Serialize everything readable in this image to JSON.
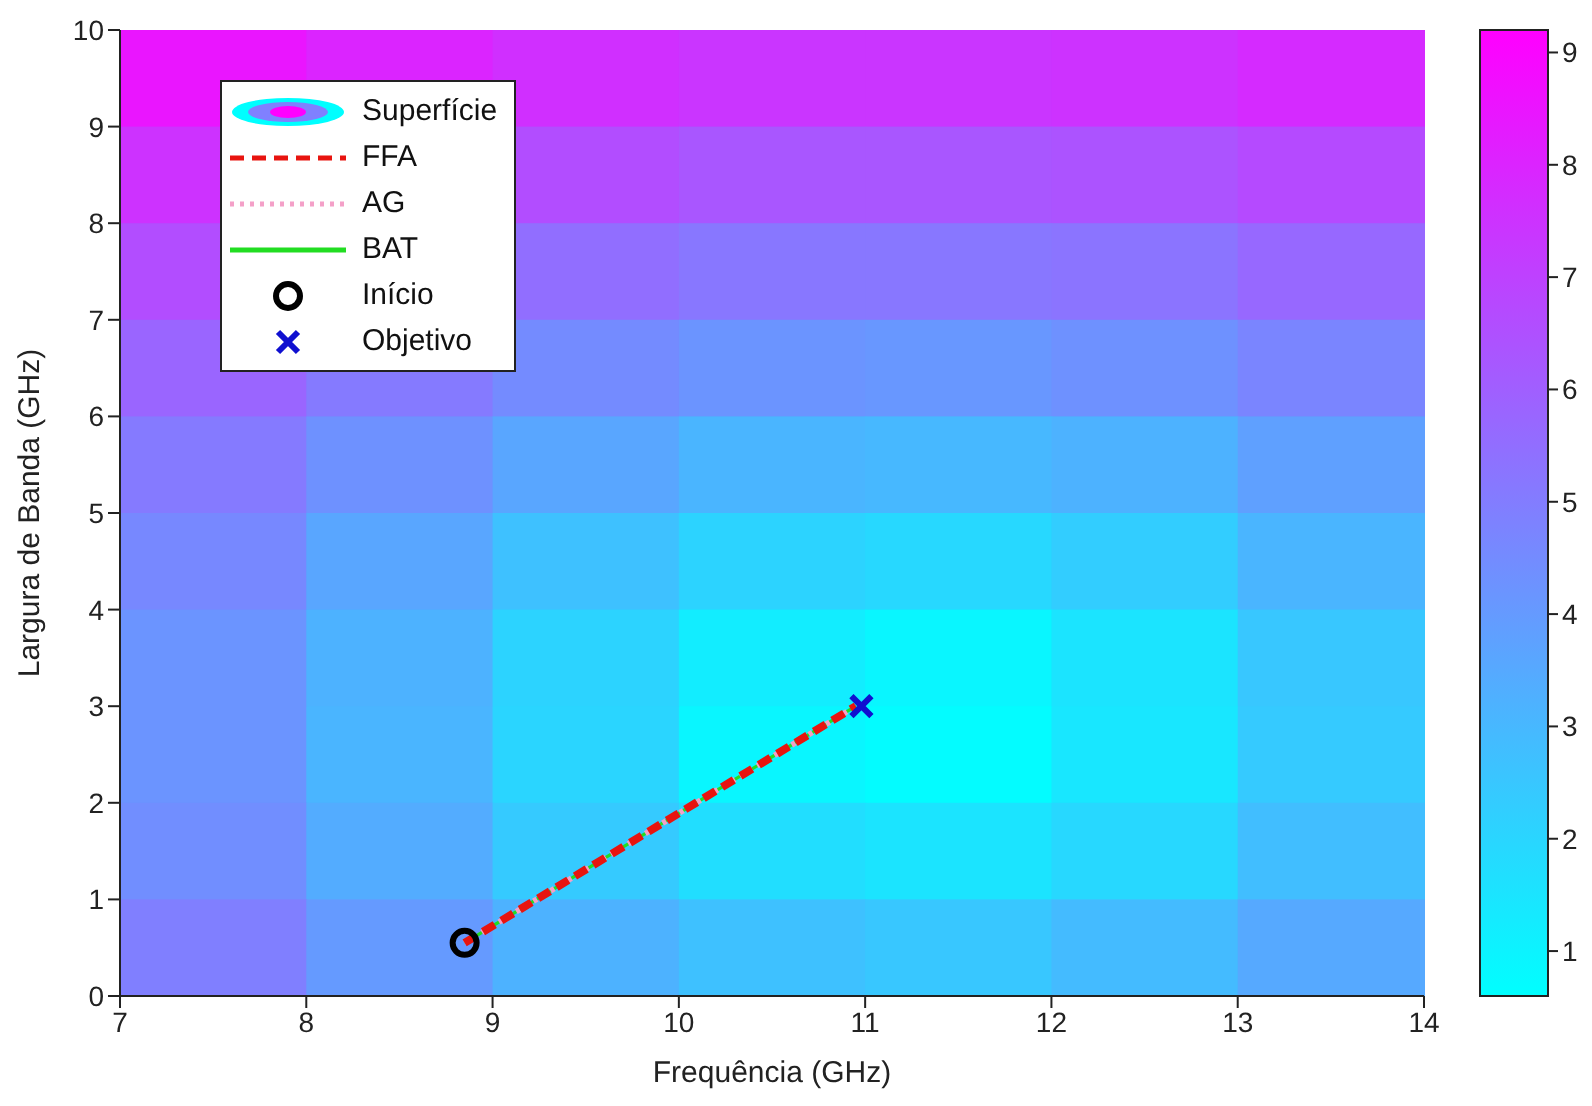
{
  "chart_data": [
    {
      "type": "heatmap",
      "annotations": [
        "Superfície"
      ],
      "clim": [
        0.6,
        9.2
      ],
      "cticks": [
        1,
        2,
        3,
        4,
        5,
        6,
        7,
        8,
        9
      ],
      "categories": [
        null,
        null,
        null,
        null,
        null,
        null,
        null
      ],
      "y_categories": [
        null,
        null,
        null,
        null,
        null,
        null,
        null,
        null,
        null,
        null
      ],
      "cells": [
        [
          8.5,
          8.0,
          7.6,
          7.4,
          7.4,
          7.5,
          7.8
        ],
        [
          7.5,
          null,
          6.6,
          6.3,
          6.3,
          6.4,
          6.7
        ],
        [
          6.6,
          null,
          5.5,
          5.2,
          5.2,
          5.3,
          5.7
        ],
        [
          5.8,
          5.1,
          4.5,
          4.2,
          4.1,
          4.3,
          4.7
        ],
        [
          5.1,
          4.3,
          3.6,
          3.1,
          3.0,
          3.2,
          3.8
        ],
        [
          4.6,
          3.6,
          2.7,
          2.1,
          1.9,
          2.3,
          3.1
        ],
        [
          4.2,
          3.2,
          2.1,
          1.2,
          0.9,
          1.5,
          2.5
        ],
        [
          4.2,
          3.1,
          2.0,
          0.9,
          0.7,
          1.4,
          2.4
        ],
        [
          4.4,
          3.4,
          2.4,
          1.7,
          1.5,
          1.9,
          2.8
        ],
        [
          4.9,
          4.0,
          3.2,
          2.7,
          2.5,
          2.9,
          3.5
        ]
      ]
    },
    {
      "type": "line",
      "xlabel": "Frequência (GHz)",
      "ylabel": "Largura de Banda (GHz)",
      "xlim": [
        7,
        14
      ],
      "xticks": [
        7,
        8,
        9,
        10,
        11,
        12,
        13,
        14
      ],
      "ylim": [
        0,
        10
      ],
      "yticks": [
        0,
        1,
        2,
        3,
        4,
        5,
        6,
        7,
        8,
        9,
        10
      ],
      "legend": "top left",
      "series": [
        {
          "name": "FFA",
          "type": "line",
          "color": "#e8140f",
          "line_style": "dashed",
          "x": [
            8.85,
            10.95
          ],
          "values": [
            0.55,
            3.0
          ]
        },
        {
          "name": "AG",
          "type": "line",
          "color": "#f4a0c8",
          "line_style": "dotted",
          "x": [
            8.85,
            10.95
          ],
          "values": [
            0.55,
            3.0
          ]
        },
        {
          "name": "BAT",
          "type": "line",
          "color": "#22dd22",
          "line_style": "solid",
          "x": [
            8.85,
            10.95
          ],
          "values": [
            0.55,
            3.0
          ]
        },
        {
          "name": "Início",
          "type": "scatter",
          "color": "#000000",
          "marker": "circle",
          "x": [
            8.85
          ],
          "values": [
            0.55
          ]
        },
        {
          "name": "Objetivo",
          "type": "scatter",
          "color": "#1010d0",
          "marker": "cross",
          "x": [
            10.98
          ],
          "values": [
            3.0
          ]
        }
      ]
    }
  ]
}
